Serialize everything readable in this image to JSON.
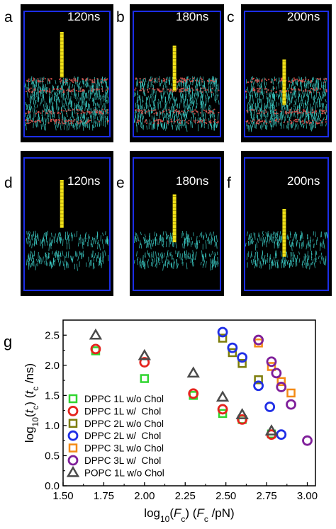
{
  "panels": [
    {
      "letter": "a",
      "time": "120ns",
      "membrane": "layered-with-water",
      "penetration": 0.0
    },
    {
      "letter": "b",
      "time": "180ns",
      "membrane": "layered-with-water",
      "penetration": 0.5
    },
    {
      "letter": "c",
      "time": "200ns",
      "membrane": "layered-with-water",
      "penetration": 1.0
    },
    {
      "letter": "d",
      "time": "120ns",
      "membrane": "lipid-only",
      "penetration": 0.0
    },
    {
      "letter": "e",
      "time": "180ns",
      "membrane": "lipid-only",
      "penetration": 0.5
    },
    {
      "letter": "f",
      "time": "200ns",
      "membrane": "lipid-only",
      "penetration": 1.0
    }
  ],
  "colors": {
    "panel_bg": "#000000",
    "box": "#1c2ee8",
    "lipid": "#3bc9c3",
    "headgroup": "#d9534f",
    "nanotube": "#f2e218"
  },
  "chart_data": {
    "panel_label": "g",
    "type": "scatter",
    "xlabel": "log10(Fc) (Fc /pN)",
    "ylabel": "log10(tc) (tc /ns)",
    "xlim": [
      1.5,
      3.05
    ],
    "ylim": [
      0.0,
      2.75
    ],
    "xticks": [
      "1.50",
      "1.75",
      "2.00",
      "2.25",
      "2.50",
      "2.75",
      "3.00"
    ],
    "yticks": [
      "0.0",
      "0.5",
      "1.0",
      "1.5",
      "2.0",
      "2.5"
    ],
    "legend_position": "lower-left",
    "series": [
      {
        "name": "DPPC 1L w/o Chol",
        "marker": "square",
        "color": "#2fd52f",
        "x": [
          1.7,
          2.0,
          2.3,
          2.48,
          2.6,
          2.78
        ],
        "y": [
          2.24,
          1.78,
          1.5,
          1.2,
          1.1,
          0.86
        ]
      },
      {
        "name": "DPPC 1L w/  Chol",
        "marker": "circle",
        "color": "#e5231d",
        "x": [
          1.7,
          2.0,
          2.3,
          2.48,
          2.6,
          2.78
        ],
        "y": [
          2.27,
          2.05,
          1.53,
          1.27,
          1.1,
          0.85
        ]
      },
      {
        "name": "DPPC 2L w/o Chol",
        "marker": "square",
        "color": "#7d7d0a",
        "x": [
          2.48,
          2.54,
          2.6,
          2.7
        ],
        "y": [
          2.45,
          2.21,
          2.03,
          1.76
        ]
      },
      {
        "name": "DPPC 2L w/  Chol",
        "marker": "circle",
        "color": "#1f2ee6",
        "x": [
          2.48,
          2.54,
          2.6,
          2.7,
          2.77,
          2.84
        ],
        "y": [
          2.55,
          2.29,
          2.13,
          1.66,
          1.31,
          0.85
        ]
      },
      {
        "name": "DPPC 3L w/o Chol",
        "marker": "square",
        "color": "#f38a14",
        "x": [
          2.7,
          2.78,
          2.84,
          2.9
        ],
        "y": [
          2.37,
          1.98,
          1.73,
          1.54
        ]
      },
      {
        "name": "DPPC 3L w/  Chol",
        "marker": "circle",
        "color": "#7f1f9a",
        "x": [
          2.7,
          2.78,
          2.81,
          2.84,
          2.9,
          3.0
        ],
        "y": [
          2.42,
          2.06,
          1.87,
          1.64,
          1.35,
          0.75
        ]
      },
      {
        "name": "POPC 1L w/o Chol",
        "marker": "triangle",
        "color": "#4a4a4a",
        "x": [
          1.7,
          2.0,
          2.3,
          2.48,
          2.6,
          2.78
        ],
        "y": [
          2.5,
          2.16,
          1.87,
          1.47,
          1.18,
          0.91
        ]
      }
    ]
  }
}
